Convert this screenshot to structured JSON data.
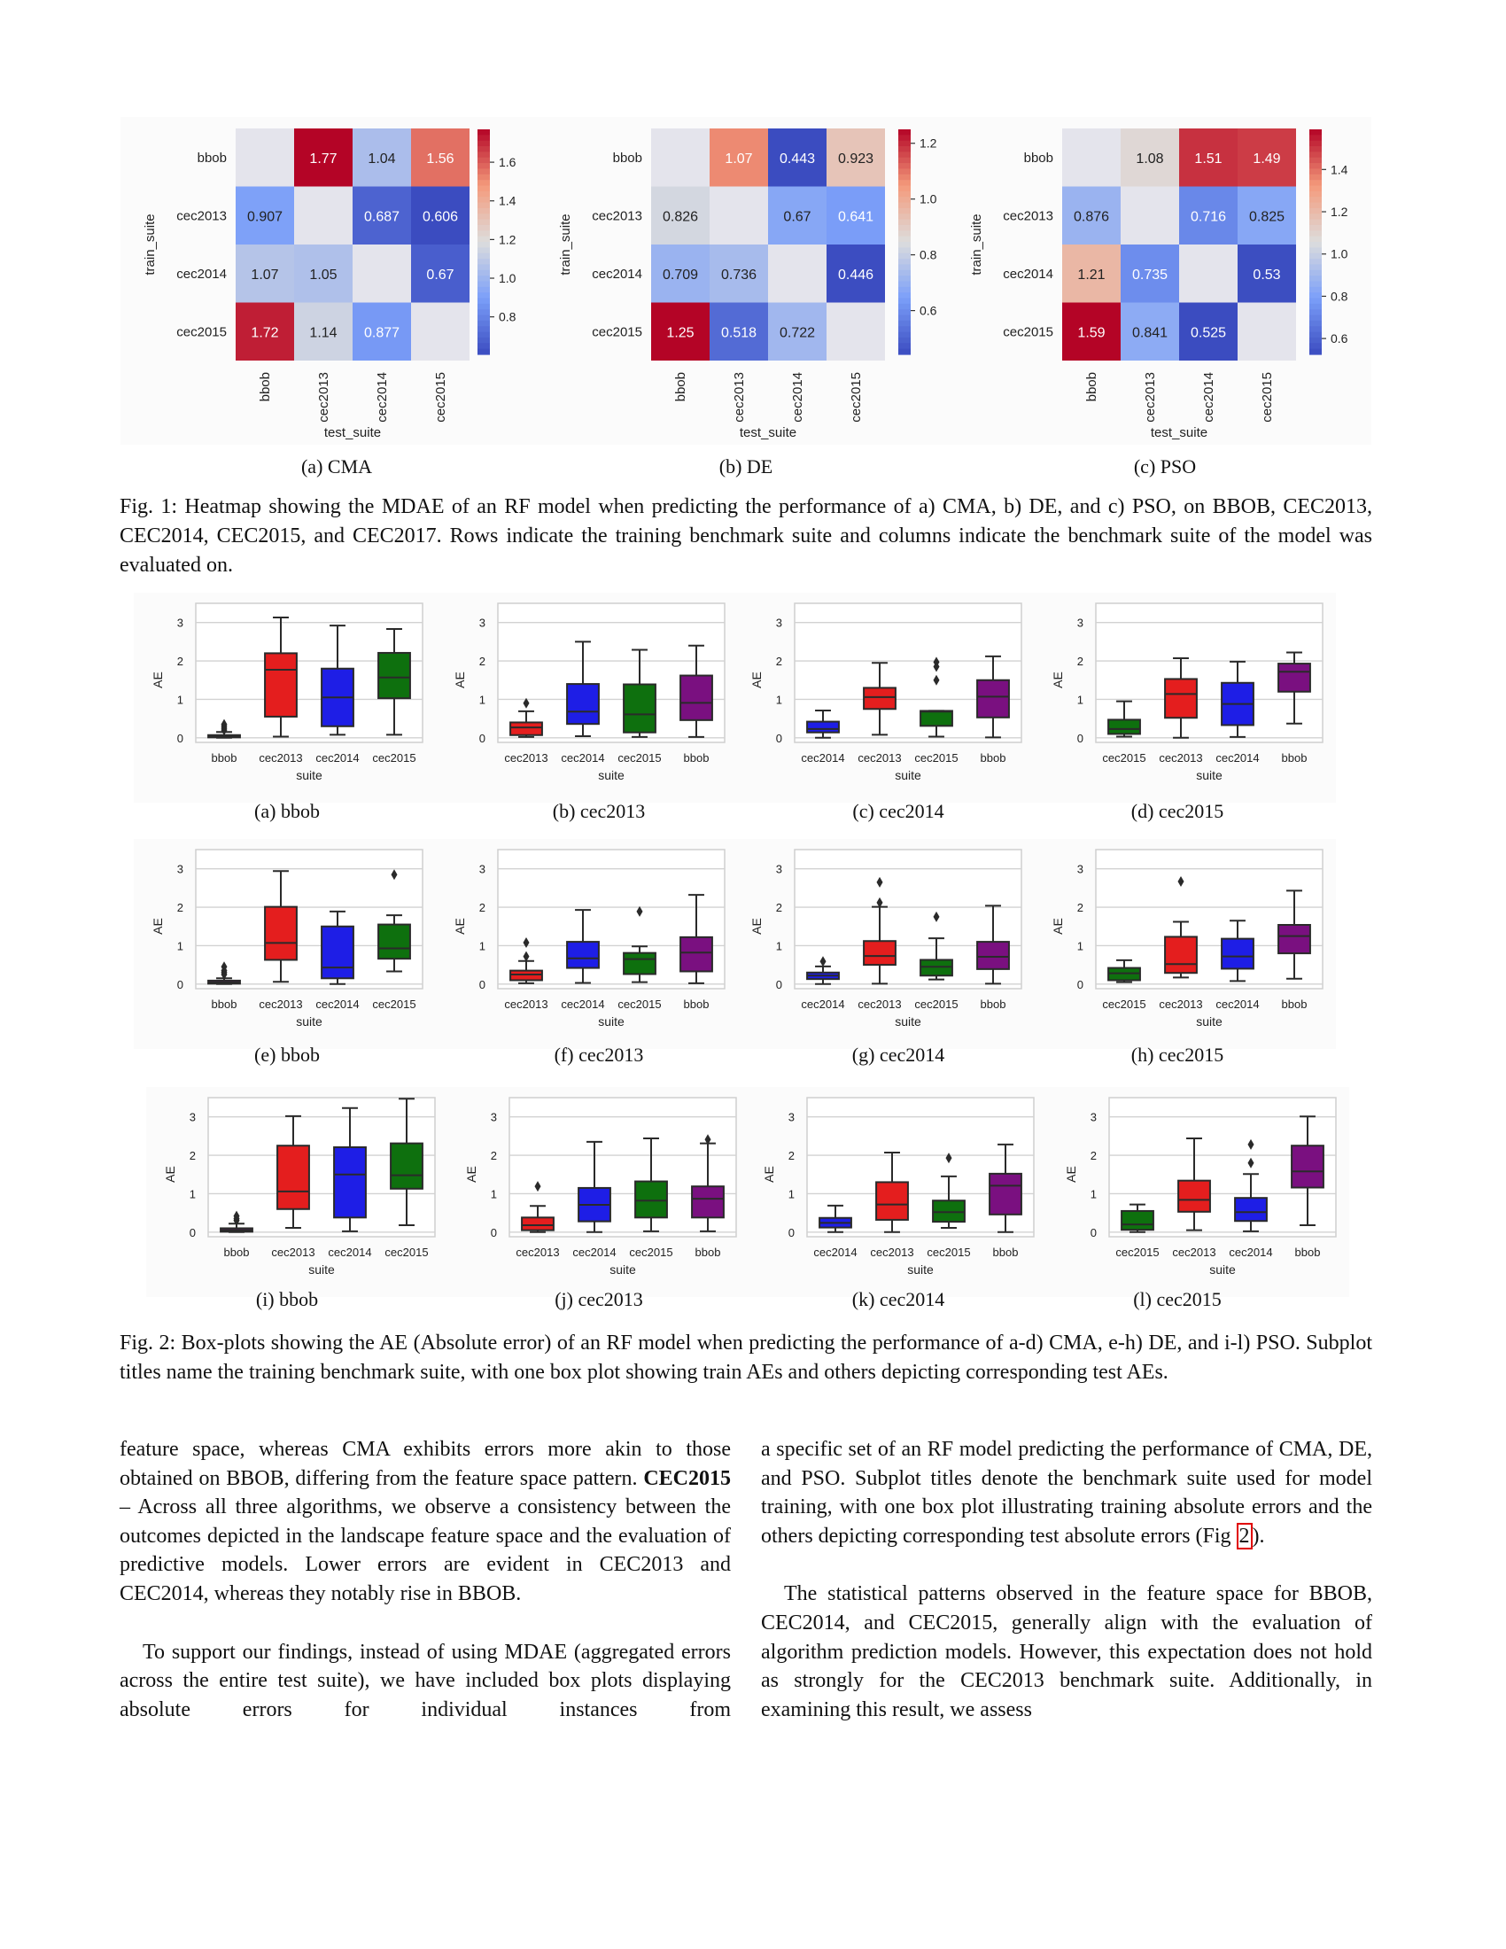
{
  "colormap": {
    "name": "coolwarm",
    "missing": "#e4e4ec"
  },
  "suite_colors": {
    "bbob": "#7a1080",
    "cec2013": "#e41e1e",
    "cec2014": "#1e1ee6",
    "cec2015": "#0e700e"
  },
  "figure1": {
    "subcaptions": [
      "(a) CMA",
      "(b) DE",
      "(c) PSO"
    ],
    "caption": "Fig. 1: Heatmap showing the MDAE of an RF model when predicting the performance of a) CMA, b) DE, and c) PSO, on BBOB, CEC2013, CEC2014, CEC2015, and CEC2017. Rows indicate the training benchmark suite and columns indicate the benchmark suite of the model was evaluated on."
  },
  "figure2": {
    "subcaptions": [
      "(a) bbob",
      "(b) cec2013",
      "(c) cec2014",
      "(d) cec2015",
      "(e) bbob",
      "(f) cec2013",
      "(g) cec2014",
      "(h) cec2015",
      "(i) bbob",
      "(j) cec2013",
      "(k) cec2014",
      "(l) cec2015"
    ],
    "caption": "Fig. 2: Box-plots showing the AE (Absolute error) of an RF model when predicting the performance of a-d) CMA, e-h) DE, and i-l) PSO. Subplot titles name the training benchmark suite, with one box plot showing train AEs and others depicting corresponding test AEs."
  },
  "chart_data": [
    {
      "type": "heatmap",
      "xlabel": "test_suite",
      "ylabel": "train_suite",
      "rows": [
        "bbob",
        "cec2013",
        "cec2014",
        "cec2015"
      ],
      "cols": [
        "bbob",
        "cec2013",
        "cec2014",
        "cec2015"
      ],
      "values": [
        [
          null,
          "1.77",
          "1.04",
          "1.56"
        ],
        [
          "0.907",
          null,
          "0.687",
          "0.606"
        ],
        [
          "1.07",
          "1.05",
          null,
          "0.67"
        ],
        [
          "1.72",
          "1.14",
          "0.877",
          null
        ]
      ],
      "colorbar": {
        "range": [
          0.606,
          1.77
        ],
        "ticks": [
          "0.8",
          "1.0",
          "1.2",
          "1.4",
          "1.6"
        ]
      }
    },
    {
      "type": "heatmap",
      "xlabel": "test_suite",
      "ylabel": "train_suite",
      "rows": [
        "bbob",
        "cec2013",
        "cec2014",
        "cec2015"
      ],
      "cols": [
        "bbob",
        "cec2013",
        "cec2014",
        "cec2015"
      ],
      "values": [
        [
          null,
          "1.07",
          "0.443",
          "0.923"
        ],
        [
          "0.826",
          null,
          "0.67",
          "0.641"
        ],
        [
          "0.709",
          "0.736",
          null,
          "0.446"
        ],
        [
          "1.25",
          "0.518",
          "0.722",
          null
        ]
      ],
      "colorbar": {
        "range": [
          0.443,
          1.25
        ],
        "ticks": [
          "0.6",
          "0.8",
          "1.0",
          "1.2"
        ]
      }
    },
    {
      "type": "heatmap",
      "xlabel": "test_suite",
      "ylabel": "train_suite",
      "rows": [
        "bbob",
        "cec2013",
        "cec2014",
        "cec2015"
      ],
      "cols": [
        "bbob",
        "cec2013",
        "cec2014",
        "cec2015"
      ],
      "values": [
        [
          null,
          "1.08",
          "1.51",
          "1.49"
        ],
        [
          "0.876",
          null,
          "0.716",
          "0.825"
        ],
        [
          "1.21",
          "0.735",
          null,
          "0.53"
        ],
        [
          "1.59",
          "0.841",
          "0.525",
          null
        ]
      ],
      "colorbar": {
        "range": [
          0.525,
          1.59
        ],
        "ticks": [
          "0.6",
          "0.8",
          "1.0",
          "1.2",
          "1.4"
        ]
      }
    },
    {
      "type": "box",
      "xlabel": "suite",
      "ylabel": "AE",
      "ylim": [
        -0.12,
        3.5
      ],
      "yticks": [
        "0",
        "1",
        "2",
        "3"
      ],
      "categories": [
        "bbob",
        "cec2013",
        "cec2014",
        "cec2015"
      ],
      "boxes": [
        [
          0,
          0.01,
          0.04,
          0.07,
          0.15
        ],
        [
          0.03,
          0.55,
          1.77,
          2.2,
          3.13
        ],
        [
          0.08,
          0.3,
          1.05,
          1.8,
          2.92
        ],
        [
          0.08,
          1.03,
          1.57,
          2.21,
          2.83
        ]
      ],
      "fliers": [
        [
          0.2,
          0.25,
          0.3,
          0.35
        ],
        [],
        [],
        []
      ]
    },
    {
      "type": "box",
      "xlabel": "suite",
      "ylabel": "AE",
      "ylim": [
        -0.12,
        3.5
      ],
      "yticks": [
        "0",
        "1",
        "2",
        "3"
      ],
      "categories": [
        "cec2013",
        "cec2014",
        "cec2015",
        "bbob"
      ],
      "boxes": [
        [
          0.02,
          0.07,
          0.27,
          0.4,
          0.69
        ],
        [
          0.04,
          0.36,
          0.68,
          1.4,
          2.5
        ],
        [
          0.02,
          0.14,
          0.61,
          1.39,
          2.29
        ],
        [
          0.02,
          0.46,
          0.91,
          1.62,
          2.4
        ]
      ],
      "fliers": [
        [
          0.9
        ],
        [],
        [],
        []
      ]
    },
    {
      "type": "box",
      "xlabel": "suite",
      "ylabel": "AE",
      "ylim": [
        -0.12,
        3.5
      ],
      "yticks": [
        "0",
        "1",
        "2",
        "3"
      ],
      "categories": [
        "cec2014",
        "cec2013",
        "cec2015",
        "bbob"
      ],
      "boxes": [
        [
          0,
          0.14,
          0.23,
          0.42,
          0.71
        ],
        [
          0.08,
          0.75,
          1.06,
          1.3,
          1.95
        ],
        [
          0.03,
          0.31,
          0.68,
          0.7,
          0.7
        ],
        [
          0.01,
          0.53,
          1.07,
          1.5,
          2.12
        ]
      ],
      "fliers": [
        [],
        [],
        [
          1.5,
          1.85,
          1.97
        ],
        []
      ]
    },
    {
      "type": "box",
      "xlabel": "suite",
      "ylabel": "AE",
      "ylim": [
        -0.12,
        3.5
      ],
      "yticks": [
        "0",
        "1",
        "2",
        "3"
      ],
      "categories": [
        "cec2015",
        "cec2013",
        "cec2014",
        "bbob"
      ],
      "boxes": [
        [
          0.03,
          0.1,
          0.23,
          0.47,
          0.95
        ],
        [
          0,
          0.52,
          1.14,
          1.53,
          2.07
        ],
        [
          0.02,
          0.33,
          0.88,
          1.43,
          1.98
        ],
        [
          0.37,
          1.2,
          1.72,
          1.93,
          2.22
        ]
      ],
      "fliers": [
        [],
        [],
        [],
        []
      ]
    },
    {
      "type": "box",
      "xlabel": "suite",
      "ylabel": "AE",
      "ylim": [
        -0.12,
        3.5
      ],
      "yticks": [
        "0",
        "1",
        "2",
        "3"
      ],
      "categories": [
        "bbob",
        "cec2013",
        "cec2014",
        "cec2015"
      ],
      "boxes": [
        [
          0,
          0.01,
          0.04,
          0.09,
          0.15
        ],
        [
          0.06,
          0.63,
          1.07,
          2.01,
          2.94
        ],
        [
          0,
          0.15,
          0.43,
          1.5,
          1.89
        ],
        [
          0.33,
          0.66,
          0.93,
          1.55,
          1.79
        ]
      ],
      "fliers": [
        [
          0.25,
          0.3,
          0.35,
          0.45
        ],
        [],
        [],
        [
          2.85
        ]
      ]
    },
    {
      "type": "box",
      "xlabel": "suite",
      "ylabel": "AE",
      "ylim": [
        -0.12,
        3.5
      ],
      "yticks": [
        "0",
        "1",
        "2",
        "3"
      ],
      "categories": [
        "cec2013",
        "cec2014",
        "cec2015",
        "bbob"
      ],
      "boxes": [
        [
          0.02,
          0.1,
          0.25,
          0.35,
          0.6
        ],
        [
          0.03,
          0.42,
          0.67,
          1.1,
          1.93
        ],
        [
          0.05,
          0.26,
          0.65,
          0.81,
          0.98
        ],
        [
          0.02,
          0.33,
          0.82,
          1.22,
          2.32
        ]
      ],
      "fliers": [
        [
          0.72,
          1.08
        ],
        [],
        [
          1.89
        ],
        []
      ]
    },
    {
      "type": "box",
      "xlabel": "suite",
      "ylabel": "AE",
      "ylim": [
        -0.12,
        3.5
      ],
      "yticks": [
        "0",
        "1",
        "2",
        "3"
      ],
      "categories": [
        "cec2014",
        "cec2013",
        "cec2015",
        "bbob"
      ],
      "boxes": [
        [
          0,
          0.13,
          0.22,
          0.3,
          0.46
        ],
        [
          0.01,
          0.5,
          0.73,
          1.12,
          2.01
        ],
        [
          0.12,
          0.22,
          0.45,
          0.63,
          1.19
        ],
        [
          0.01,
          0.39,
          0.71,
          1.1,
          2.04
        ]
      ],
      "fliers": [
        [
          0.59
        ],
        [
          2.12,
          2.65
        ],
        [
          1.75
        ],
        []
      ]
    },
    {
      "type": "box",
      "xlabel": "suite",
      "ylabel": "AE",
      "ylim": [
        -0.12,
        3.5
      ],
      "yticks": [
        "0",
        "1",
        "2",
        "3"
      ],
      "categories": [
        "cec2015",
        "cec2013",
        "cec2014",
        "bbob"
      ],
      "boxes": [
        [
          0.05,
          0.1,
          0.28,
          0.42,
          0.62
        ],
        [
          0.17,
          0.29,
          0.52,
          1.23,
          1.62
        ],
        [
          0.08,
          0.4,
          0.72,
          1.18,
          1.65
        ],
        [
          0.14,
          0.8,
          1.25,
          1.54,
          2.43
        ]
      ],
      "fliers": [
        [],
        [
          2.67
        ],
        [],
        []
      ]
    },
    {
      "type": "box",
      "xlabel": "suite",
      "ylabel": "AE",
      "ylim": [
        -0.12,
        3.5
      ],
      "yticks": [
        "0",
        "1",
        "2",
        "3"
      ],
      "categories": [
        "bbob",
        "cec2013",
        "cec2014",
        "cec2015"
      ],
      "boxes": [
        [
          0,
          0.01,
          0.05,
          0.1,
          0.22
        ],
        [
          0.11,
          0.6,
          1.06,
          2.25,
          3.02
        ],
        [
          0.02,
          0.38,
          1.5,
          2.21,
          3.23
        ],
        [
          0.18,
          1.13,
          1.48,
          2.31,
          3.47
        ]
      ],
      "fliers": [
        [
          0.3,
          0.35,
          0.42
        ],
        [],
        [],
        []
      ]
    },
    {
      "type": "box",
      "xlabel": "suite",
      "ylabel": "AE",
      "ylim": [
        -0.12,
        3.5
      ],
      "yticks": [
        "0",
        "1",
        "2",
        "3"
      ],
      "categories": [
        "cec2013",
        "cec2014",
        "cec2015",
        "bbob"
      ],
      "boxes": [
        [
          0,
          0.05,
          0.18,
          0.38,
          0.68
        ],
        [
          0,
          0.28,
          0.71,
          1.15,
          2.35
        ],
        [
          0.02,
          0.38,
          0.82,
          1.32,
          2.44
        ],
        [
          0.02,
          0.38,
          0.87,
          1.19,
          2.31
        ]
      ],
      "fliers": [
        [
          1.19
        ],
        [],
        [],
        [
          2.41
        ]
      ]
    },
    {
      "type": "box",
      "xlabel": "suite",
      "ylabel": "AE",
      "ylim": [
        -0.12,
        3.5
      ],
      "yticks": [
        "0",
        "1",
        "2",
        "3"
      ],
      "categories": [
        "cec2014",
        "cec2013",
        "cec2015",
        "bbob"
      ],
      "boxes": [
        [
          0,
          0.12,
          0.24,
          0.37,
          0.69
        ],
        [
          0,
          0.32,
          0.72,
          1.3,
          2.07
        ],
        [
          0.11,
          0.27,
          0.52,
          0.82,
          1.45
        ],
        [
          0,
          0.46,
          1.21,
          1.52,
          2.28
        ]
      ],
      "fliers": [
        [],
        [],
        [
          1.93
        ],
        []
      ]
    },
    {
      "type": "box",
      "xlabel": "suite",
      "ylabel": "AE",
      "ylim": [
        -0.12,
        3.5
      ],
      "yticks": [
        "0",
        "1",
        "2",
        "3"
      ],
      "categories": [
        "cec2015",
        "cec2013",
        "cec2014",
        "bbob"
      ],
      "boxes": [
        [
          0,
          0.06,
          0.2,
          0.55,
          0.72
        ],
        [
          0.05,
          0.53,
          0.84,
          1.34,
          2.44
        ],
        [
          0.02,
          0.29,
          0.52,
          0.89,
          1.51
        ],
        [
          0.18,
          1.16,
          1.58,
          2.25,
          3.01
        ]
      ],
      "fliers": [
        [],
        [],
        [
          1.8,
          2.28
        ],
        []
      ]
    }
  ],
  "body": {
    "left_p1_a": "feature space, whereas CMA exhibits errors more akin to those obtained on BBOB, differing from the feature space pattern. ",
    "left_p1_bold": "CEC2015",
    "left_p1_b": " – Across all three algorithms, we observe a consistency between the outcomes depicted in the landscape feature space and the evaluation of predictive models. Lower errors are evident in CEC2013 and CEC2014, whereas they notably rise in BBOB.",
    "left_p2": "To support our findings, instead of using MDAE (aggregated errors across the entire test suite), we have included box plots displaying absolute errors for individual instances from",
    "right_p1_a": "a specific set of an RF model predicting the performance of CMA, DE, and PSO. Subplot titles denote the benchmark suite used for model training, with one box plot illustrating training absolute errors and the others depicting corresponding test absolute errors (Fig ",
    "right_p1_ref": "2",
    "right_p1_b": ").",
    "right_p2": "The statistical patterns observed in the feature space for BBOB, CEC2014, and CEC2015, generally align with the evaluation of algorithm prediction models. However, this expectation does not hold as strongly for the CEC2013 benchmark suite. Additionally, in examining this result, we assess"
  }
}
